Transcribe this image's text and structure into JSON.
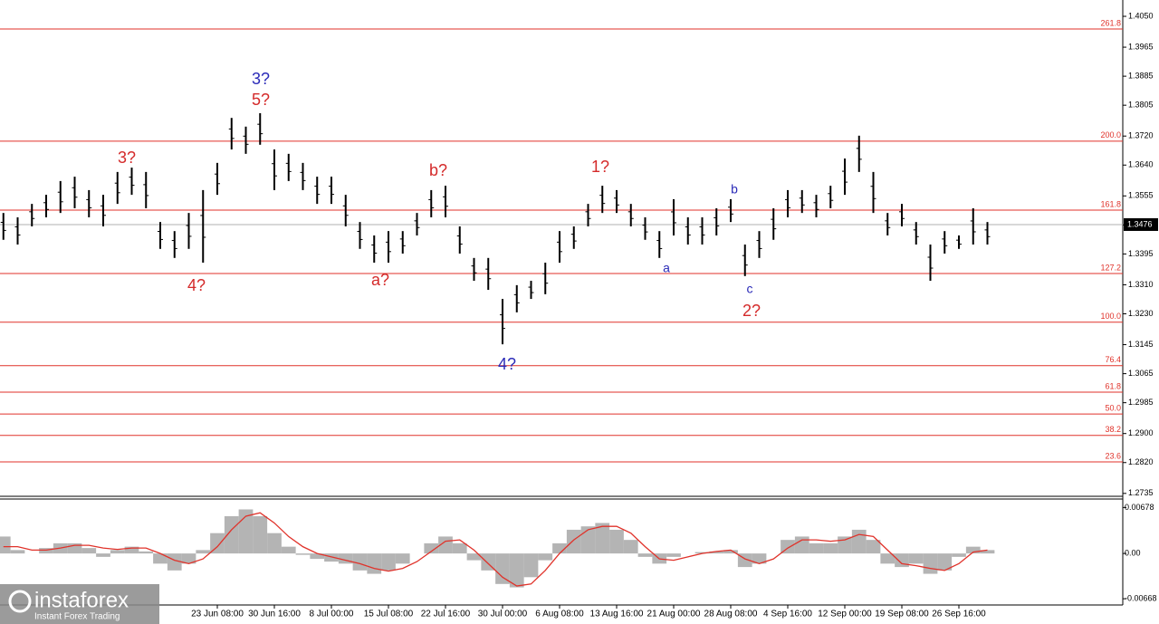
{
  "chart_data": [
    {
      "type": "ohlc",
      "categories": [
        null,
        null,
        null,
        null,
        null,
        null,
        null,
        null,
        null,
        null,
        null,
        null,
        null,
        null,
        null,
        "23 Jun 08:00",
        null,
        null,
        null,
        "30 Jun 16:00",
        null,
        null,
        null,
        "8 Jul 00:00",
        null,
        null,
        null,
        "15 Jul 08:00",
        null,
        null,
        null,
        "22 Jul 16:00",
        null,
        null,
        null,
        "30 Jul 00:00",
        null,
        null,
        null,
        "6 Aug 08:00",
        null,
        null,
        null,
        "13 Aug 16:00",
        null,
        null,
        null,
        "21 Aug 00:00",
        null,
        null,
        null,
        "28 Aug 08:00",
        null,
        null,
        null,
        "4 Sep 16:00",
        null,
        null,
        null,
        "12 Sep 00:00",
        null,
        null,
        null,
        "19 Sep 08:00",
        null,
        null,
        null,
        "26 Sep 16:00",
        null,
        null
      ],
      "high": [
        1.3508,
        1.3496,
        1.3533,
        1.3558,
        1.3596,
        1.3608,
        1.3571,
        1.3558,
        1.3621,
        1.3633,
        1.3621,
        1.3483,
        1.3458,
        1.3508,
        1.3571,
        1.3646,
        1.377,
        1.3746,
        1.3783,
        1.3683,
        1.3671,
        1.3646,
        1.3608,
        1.3608,
        1.3558,
        1.3483,
        1.3446,
        1.3458,
        1.3458,
        1.3508,
        1.3571,
        1.3583,
        1.3471,
        1.3384,
        1.3384,
        1.3271,
        1.3309,
        1.3321,
        1.3371,
        1.3458,
        1.3471,
        1.3533,
        1.3583,
        1.3571,
        1.3533,
        1.3496,
        1.3458,
        1.3546,
        1.3496,
        1.3496,
        1.3521,
        1.3546,
        1.3421,
        1.3458,
        1.3521,
        1.3571,
        1.3571,
        1.3558,
        1.3583,
        1.3658,
        1.3721,
        1.3621,
        1.3508,
        1.3533,
        1.3483,
        1.3421,
        1.3458,
        1.3446,
        1.3521,
        1.3483
      ],
      "low": [
        1.3434,
        1.3421,
        1.3471,
        1.3496,
        1.3508,
        1.3521,
        1.3496,
        1.3471,
        1.3533,
        1.3558,
        1.3521,
        1.3409,
        1.3384,
        1.3409,
        1.3371,
        1.3558,
        1.3683,
        1.3671,
        1.3696,
        1.3571,
        1.3596,
        1.3571,
        1.3533,
        1.3533,
        1.3471,
        1.3409,
        1.3371,
        1.3371,
        1.3396,
        1.3446,
        1.3496,
        1.3496,
        1.3396,
        1.3321,
        1.3296,
        1.3146,
        1.3234,
        1.3271,
        1.3284,
        1.3371,
        1.3409,
        1.3471,
        1.3508,
        1.3508,
        1.3471,
        1.3434,
        1.3384,
        1.3446,
        1.3421,
        1.3421,
        1.3446,
        1.3483,
        1.3334,
        1.3384,
        1.3434,
        1.3496,
        1.3508,
        1.3496,
        1.3521,
        1.3558,
        1.3621,
        1.3508,
        1.3446,
        1.3471,
        1.3421,
        1.3321,
        1.3396,
        1.3409,
        1.3421,
        1.3421
      ],
      "color": "#000000",
      "ylim": [
        1.2727,
        1.4095
      ],
      "yticks": [
        {
          "value": 1.405,
          "label": "1.4050"
        },
        {
          "value": 1.3965,
          "label": "1.3965"
        },
        {
          "value": 1.3885,
          "label": "1.3885"
        },
        {
          "value": 1.3805,
          "label": "1.3805"
        },
        {
          "value": 1.372,
          "label": "1.3720"
        },
        {
          "value": 1.364,
          "label": "1.3640"
        },
        {
          "value": 1.3555,
          "label": "1.3555"
        },
        {
          "value": 1.3475,
          "label": "1.3475"
        },
        {
          "value": 1.3395,
          "label": "1.3395"
        },
        {
          "value": 1.331,
          "label": "1.3310"
        },
        {
          "value": 1.323,
          "label": "1.3230"
        },
        {
          "value": 1.3145,
          "label": "1.3145"
        },
        {
          "value": 1.3065,
          "label": "1.3065"
        },
        {
          "value": 1.2985,
          "label": "1.2985"
        },
        {
          "value": 1.29,
          "label": "1.2900"
        },
        {
          "value": 1.282,
          "label": "1.2820"
        },
        {
          "value": 1.2735,
          "label": "1.2735"
        }
      ],
      "levels": [
        {
          "value": 1.4015,
          "label": "261.8"
        },
        {
          "value": 1.3706,
          "label": "200.0"
        },
        {
          "value": 1.3516,
          "label": "161.8"
        },
        {
          "value": 1.3341,
          "label": "127.2"
        },
        {
          "value": 1.3207,
          "label": "100.0"
        },
        {
          "value": 1.3087,
          "label": "76.4"
        },
        {
          "value": 1.3014,
          "label": "61.8"
        },
        {
          "value": 1.2954,
          "label": "50.0"
        },
        {
          "value": 1.2895,
          "label": "38.2"
        },
        {
          "value": 1.2822,
          "label": "23.6"
        }
      ],
      "level_color": "#e0322a",
      "last": {
        "value": 1.3476,
        "label": "1.3476"
      },
      "annotations": [
        {
          "text": "3?",
          "color": "#2b2bb8"
        },
        {
          "text": "5?",
          "color": "#d42a2a"
        },
        {
          "text": "3?",
          "color": "#d42a2a"
        },
        {
          "text": "4?",
          "color": "#d42a2a"
        },
        {
          "text": "a?",
          "color": "#d42a2a"
        },
        {
          "text": "b?",
          "color": "#d42a2a"
        },
        {
          "text": "4?",
          "color": "#2b2bb8"
        },
        {
          "text": "1?",
          "color": "#d42a2a"
        },
        {
          "text": "a",
          "color": "#2b2bb8"
        },
        {
          "text": "b",
          "color": "#2b2bb8"
        },
        {
          "text": "c",
          "color": "#2b2bb8"
        },
        {
          "text": "2?",
          "color": "#d42a2a"
        }
      ]
    },
    {
      "type": "macd",
      "histogram": [
        0.0025,
        0.0005,
        0.0,
        0.0008,
        0.0015,
        0.0015,
        0.0008,
        -0.0005,
        0.0005,
        0.001,
        0.0003,
        -0.0015,
        -0.0025,
        -0.0015,
        0.0005,
        0.003,
        0.0055,
        0.0065,
        0.0055,
        0.003,
        0.001,
        -0.0002,
        -0.0008,
        -0.0012,
        -0.0015,
        -0.0025,
        -0.003,
        -0.0025,
        -0.0015,
        0.0,
        0.0015,
        0.0025,
        0.0015,
        -0.001,
        -0.0025,
        -0.0045,
        -0.005,
        -0.0035,
        -0.001,
        0.0015,
        0.0035,
        0.004,
        0.0045,
        0.0035,
        0.002,
        -0.0005,
        -0.0015,
        -0.0005,
        0.0,
        0.0002,
        0.0003,
        0.0005,
        -0.002,
        -0.0015,
        0.0,
        0.002,
        0.0025,
        0.0015,
        0.0015,
        0.0025,
        0.0035,
        0.002,
        -0.0015,
        -0.002,
        -0.0015,
        -0.003,
        -0.0025,
        -0.0005,
        0.001,
        0.0005
      ],
      "histogram_color": "#b4b4b4",
      "signal": [
        0.001,
        0.001,
        0.0005,
        0.0005,
        0.0008,
        0.0012,
        0.0012,
        0.0008,
        0.0006,
        0.0008,
        0.0008,
        0.0,
        -0.001,
        -0.0015,
        -0.0008,
        0.001,
        0.0035,
        0.0055,
        0.006,
        0.0045,
        0.0025,
        0.001,
        0.0,
        -0.0005,
        -0.001,
        -0.0015,
        -0.0022,
        -0.0026,
        -0.0022,
        -0.0012,
        0.0003,
        0.0018,
        0.002,
        0.0005,
        -0.0015,
        -0.0035,
        -0.0048,
        -0.0045,
        -0.0025,
        0.0,
        0.002,
        0.0035,
        0.004,
        0.004,
        0.003,
        0.001,
        -0.0008,
        -0.001,
        -0.0005,
        0.0,
        0.0003,
        0.0005,
        -0.0008,
        -0.0015,
        -0.0008,
        0.0008,
        0.002,
        0.002,
        0.0018,
        0.002,
        0.0028,
        0.0025,
        0.0005,
        -0.0015,
        -0.0018,
        -0.0022,
        -0.0025,
        -0.0015,
        0.0002,
        0.0005
      ],
      "signal_color": "#e0322a",
      "ylim": [
        -0.0076,
        0.0079
      ],
      "yticks": [
        0.00678,
        {
          "value": 0,
          "label": "0.00"
        },
        -0.00668
      ]
    }
  ],
  "watermark": {
    "brand": "instaforex",
    "tagline": "Instant Forex Trading"
  }
}
